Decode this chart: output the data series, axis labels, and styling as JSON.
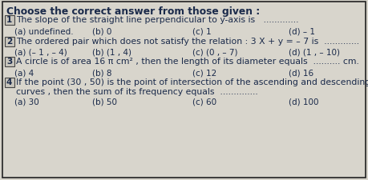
{
  "title": "Choose the correct answer from those given :",
  "bg_color": "#d8d5cc",
  "border_color": "#222222",
  "text_color": "#1a2a4a",
  "questions": [
    {
      "num": "1",
      "line1": "The slope of the straight line perpendicular to y-axis is   .............",
      "options": [
        "(a) undefined.",
        "(b) 0",
        "(c) 1",
        "(d) – 1"
      ]
    },
    {
      "num": "2",
      "line1": "The ordered pair which does not satisfy the relation : 3 X + y = – 7 is  .............",
      "options": [
        "(a) (– 1 , – 4)",
        "(b) (1 , 4)",
        "(c) (0 , – 7)",
        "(d) (1 , – 10)"
      ]
    },
    {
      "num": "3",
      "line1": "A circle is of area 16 π cm² , then the length of its diameter equals  .......... cm.",
      "options": [
        "(a) 4",
        "(b) 8",
        "(c) 12",
        "(d) 16"
      ]
    },
    {
      "num": "4",
      "line1": "If the point (30 , 50) is the point of intersection of the ascending and descending",
      "line2": "curves , then the sum of its frequency equals  ..............",
      "options": [
        "(a) 30",
        "(b) 50",
        "(c) 60",
        "(d) 100"
      ]
    }
  ],
  "title_fontsize": 8.8,
  "q_fontsize": 7.8,
  "opt_fontsize": 7.5,
  "num_fontsize": 7.5
}
